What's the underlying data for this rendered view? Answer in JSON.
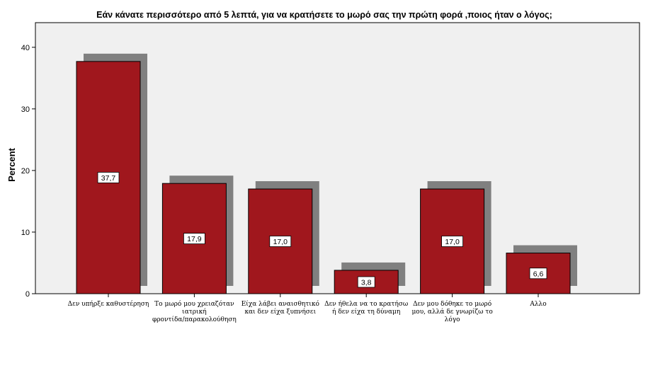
{
  "chart_data": {
    "type": "bar",
    "title": "Εάν κάνατε περισσότερο από 5 λεπτά, για να κρατήσετε το μωρό σας την πρώτη φορά ,ποιος ήταν ο λόγος;",
    "ylabel": "Percent",
    "xlabel": "",
    "ylim": [
      0,
      44
    ],
    "yticks": [
      0,
      10,
      20,
      30,
      40
    ],
    "grid": false,
    "categories": [
      [
        "Δεν υπήρξε καθυστέρηση"
      ],
      [
        "Το μωρό μου χρειαζόταν",
        "ιατρική",
        "φροντίδα/παρακολούθηση"
      ],
      [
        "Είχα λάβει αναισθητικό",
        "και δεν είχα ξυπνήσει"
      ],
      [
        "Δεν ήθελα να το κρατήσω",
        "ή δεν είχα τη δύναμη"
      ],
      [
        "Δεν μου δόθηκε το μωρό",
        "μου, αλλά δε γνωρίζω το",
        "λόγο"
      ],
      [
        "Αλλο"
      ]
    ],
    "values": [
      37.7,
      17.9,
      17.0,
      3.8,
      17.0,
      6.6
    ],
    "data_labels": [
      "37,7",
      "17,9",
      "17,0",
      "3,8",
      "17,0",
      "6,6"
    ],
    "colors": {
      "bar": "#a0171d",
      "shadow": "#808080",
      "plot_background": "#f0f0f0"
    }
  }
}
